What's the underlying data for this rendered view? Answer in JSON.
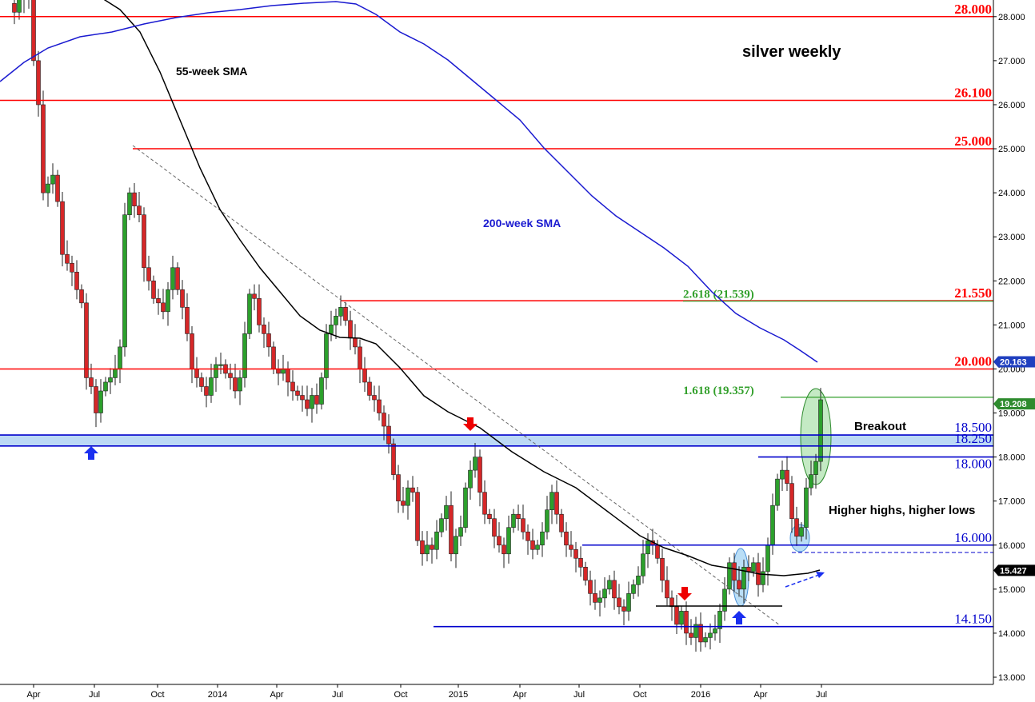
{
  "chart_data": {
    "type": "candlestick",
    "title": "silver weekly",
    "yaxis": {
      "ticks": [
        "13.000",
        "14.000",
        "15.000",
        "16.000",
        "17.000",
        "18.000",
        "19.000",
        "20.000",
        "21.000",
        "22.000",
        "23.000",
        "24.000",
        "25.000",
        "26.000",
        "27.000",
        "28.000"
      ],
      "range": [
        12.95,
        28.32
      ]
    },
    "xaxis": {
      "labels": [
        "Apr",
        "Jul",
        "Oct",
        "2014",
        "Apr",
        "Jul",
        "Oct",
        "2015",
        "Apr",
        "Jul",
        "Oct",
        "2016",
        "Apr",
        "Jul"
      ]
    },
    "levels": [
      {
        "label": "28.000",
        "value": 28.0,
        "color": "#ff0000"
      },
      {
        "label": "26.100",
        "value": 26.1,
        "color": "#ff0000"
      },
      {
        "label": "25.000",
        "value": 25.0,
        "color": "#ff0000"
      },
      {
        "label": "21.550",
        "value": 21.55,
        "color": "#ff0000"
      },
      {
        "label": "20.000",
        "value": 20.0,
        "color": "#ff0000"
      },
      {
        "label": "18.500",
        "value": 18.5,
        "color": "#0000cc"
      },
      {
        "label": "18.250",
        "value": 18.25,
        "color": "#0000cc"
      },
      {
        "label": "18.000",
        "value": 18.0,
        "color": "#0000cc"
      },
      {
        "label": "16.000",
        "value": 16.0,
        "color": "#0000cc"
      },
      {
        "label": "14.150",
        "value": 14.15,
        "color": "#0000cc"
      }
    ],
    "fibonacci": [
      {
        "label": "2.618 (21.539)",
        "value": 21.539
      },
      {
        "label": "1.618 (19.357)",
        "value": 19.357
      }
    ],
    "price_tags": [
      {
        "label": "20.163",
        "value": 20.163,
        "color": "#1f3fbf"
      },
      {
        "label": "19.208",
        "value": 19.208,
        "color": "#2e8b2e"
      },
      {
        "label": "15.427",
        "value": 15.427,
        "color": "#000000"
      }
    ],
    "series": [
      {
        "name": "55-week SMA",
        "color": "#000000"
      },
      {
        "name": "200-week SMA",
        "color": "#0000cc"
      }
    ],
    "annotations": [
      "Breakout",
      "Higher highs, higher lows"
    ],
    "colors": {
      "up": "#2ca02c",
      "down": "#d62728"
    }
  }
}
